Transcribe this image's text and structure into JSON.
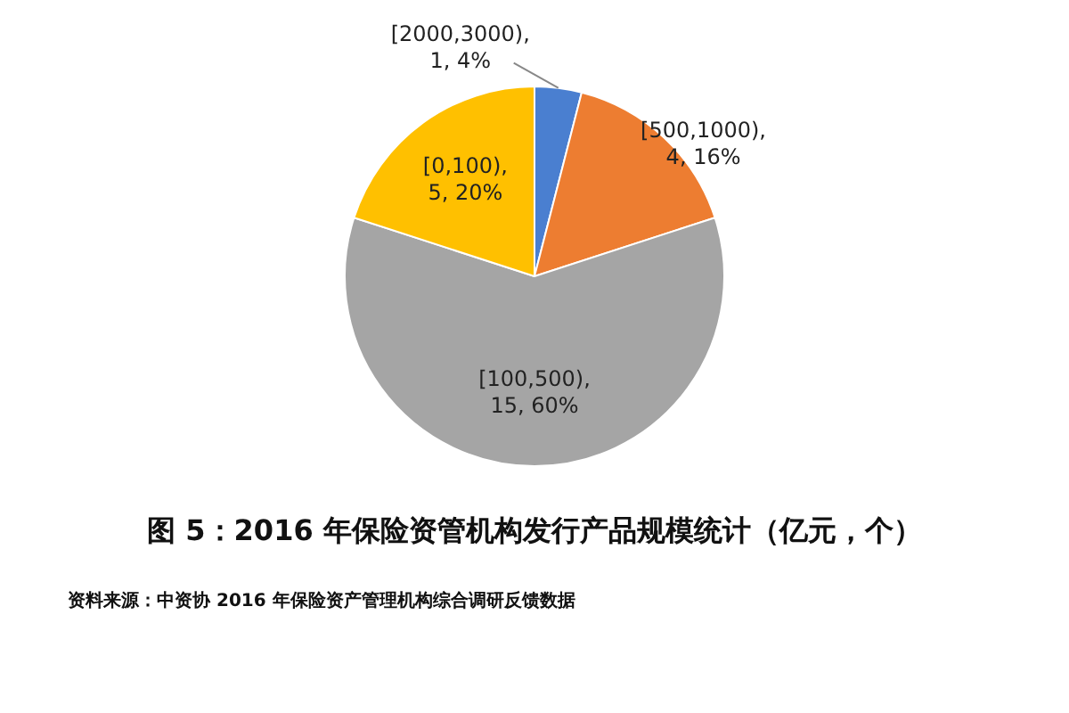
{
  "chart_data": {
    "type": "pie",
    "title": "图 5：2016 年保险资管机构发行产品规模统计（亿元，个）",
    "categories": [
      "[2000,3000)",
      "[500,1000)",
      "[100,500)",
      "[0,100)"
    ],
    "values": [
      1,
      4,
      15,
      5
    ],
    "value_labels": [
      ", 1, 4%",
      ", 4, 16%",
      ", 15, 60%",
      ", 5, 20%"
    ],
    "colors": [
      "#4a7fd0",
      "#ed7d31",
      "#a5a5a5",
      "#ffc000"
    ],
    "annotations": [
      "资料来源：中资协 2016 年保险资产管理机构综合调研反馈数据"
    ]
  }
}
